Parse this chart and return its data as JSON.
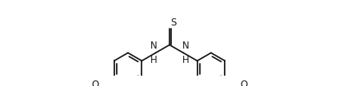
{
  "bg_color": "#ffffff",
  "line_color": "#1a1a1a",
  "line_width": 1.3,
  "font_size": 8.5,
  "fig_width": 4.24,
  "fig_height": 1.08,
  "dpi": 100,
  "BL": 0.55,
  "xlim": [
    -5.5,
    5.5
  ],
  "ylim": [
    -1.05,
    1.55
  ]
}
